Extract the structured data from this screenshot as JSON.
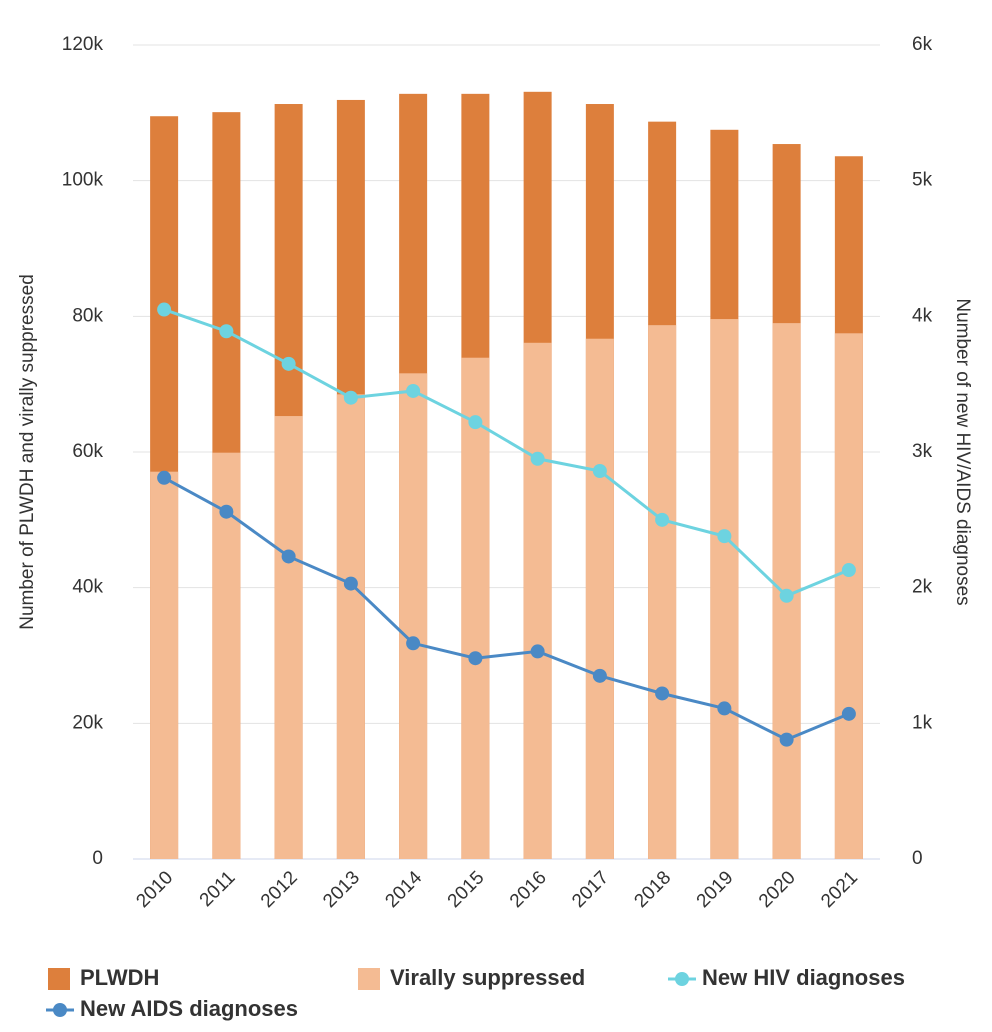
{
  "chart_data": {
    "type": "bar-line",
    "categories": [
      "2010",
      "2011",
      "2012",
      "2013",
      "2014",
      "2015",
      "2016",
      "2017",
      "2018",
      "2019",
      "2020",
      "2021"
    ],
    "series": [
      {
        "name": "PLWDH",
        "type": "bar",
        "color": "#dd7f3c",
        "values": [
          109500,
          110100,
          111300,
          111900,
          112800,
          112800,
          113100,
          111300,
          108700,
          107500,
          105400,
          103600
        ]
      },
      {
        "name": "Virally suppressed",
        "type": "bar",
        "color": "#f4bb93",
        "values": [
          57100,
          59900,
          65300,
          68500,
          71600,
          73900,
          76100,
          76700,
          78700,
          79600,
          79000,
          77500
        ]
      },
      {
        "name": "New HIV diagnoses",
        "type": "line",
        "axis": "y2",
        "color": "#6dd3e0",
        "values": [
          4050,
          3890,
          3650,
          3400,
          3450,
          3220,
          2950,
          2860,
          2500,
          2380,
          1940,
          2130
        ]
      },
      {
        "name": "New AIDS diagnoses",
        "type": "line",
        "axis": "y2",
        "color": "#4a89c5",
        "values": [
          2810,
          2560,
          2230,
          2030,
          1590,
          1480,
          1530,
          1350,
          1220,
          1110,
          880,
          1070
        ]
      }
    ],
    "ylabel": "Number of PLWDH and virally suppressed",
    "y2label": "Number of new HIV/AIDS diagnoses",
    "ylim": [
      0,
      120000
    ],
    "yticks": [
      0,
      {
        "value": 20000,
        "label": "20k"
      },
      {
        "value": 40000,
        "label": "40k"
      },
      {
        "value": 60000,
        "label": "60k"
      },
      {
        "value": 80000,
        "label": "80k"
      },
      {
        "value": 100000,
        "label": "100k"
      },
      {
        "value": 120000,
        "label": "120k"
      }
    ],
    "y2lim": [
      0,
      6000
    ],
    "y2ticks": [
      0,
      {
        "value": 1000,
        "label": "1k"
      },
      {
        "value": 2000,
        "label": "2k"
      },
      {
        "value": 3000,
        "label": "3k"
      },
      {
        "value": 4000,
        "label": "4k"
      },
      {
        "value": 5000,
        "label": "5k"
      },
      {
        "value": 6000,
        "label": "6k"
      }
    ],
    "grid": true,
    "legend": "bottom"
  }
}
